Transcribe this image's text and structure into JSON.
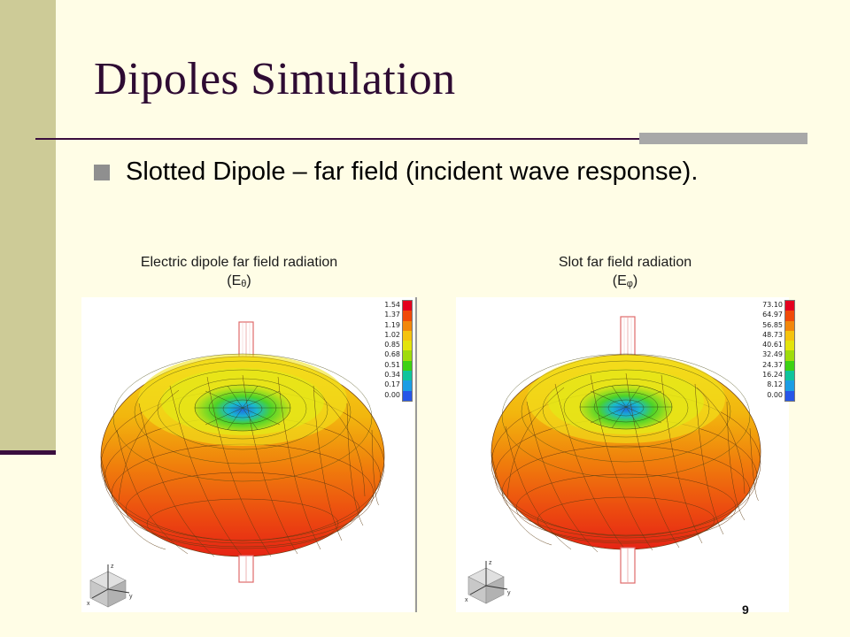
{
  "slide": {
    "title": "Dipoles Simulation",
    "bullet": "Slotted Dipole – far field  (incident wave response).",
    "page_number": "9"
  },
  "left_panel": {
    "caption_line1": "Electric dipole far field radiation",
    "caption_symbol": "(E",
    "caption_subscript": "θ",
    "caption_close": ")",
    "legend": [
      "1.54",
      "1.37",
      "1.19",
      "1.02",
      "0.85",
      "0.68",
      "0.51",
      "0.34",
      "0.17",
      "0.00"
    ],
    "axis_labels": {
      "z": "z",
      "y": "y",
      "x": "x"
    }
  },
  "right_panel": {
    "caption_line1": "Slot far field radiation",
    "caption_symbol": "(E",
    "caption_subscript": "φ",
    "caption_close": ")",
    "legend": [
      "73.10",
      "64.97",
      "56.85",
      "48.73",
      "40.61",
      "32.49",
      "24.37",
      "16.24",
      "8.12",
      "0.00"
    ],
    "axis_labels": {
      "z": "z",
      "y": "y",
      "x": "x"
    }
  },
  "colors": {
    "legend_scale": [
      "#E4001E",
      "#F04A08",
      "#F2870B",
      "#F5C30E",
      "#E3E40C",
      "#9FDC0C",
      "#3CD114",
      "#0FC49C",
      "#1B9DE4",
      "#2656E8"
    ]
  }
}
